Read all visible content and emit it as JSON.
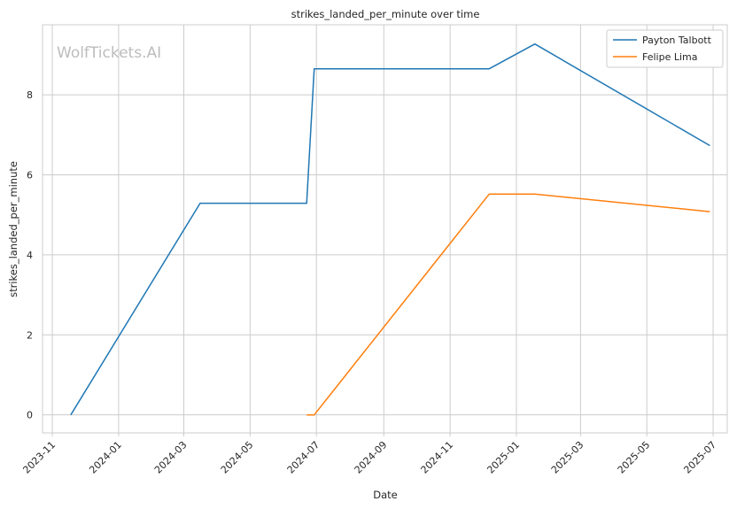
{
  "chart_data": {
    "type": "line",
    "title": "strikes_landed_per_minute over time",
    "xlabel": "Date",
    "ylabel": "strikes_landed_per_minute",
    "watermark": "WolfTickets.AI",
    "x_ticks": [
      "2023-11",
      "2024-01",
      "2024-03",
      "2024-05",
      "2024-07",
      "2024-09",
      "2024-11",
      "2025-01",
      "2025-03",
      "2025-05",
      "2025-07"
    ],
    "y_ticks": [
      0,
      2,
      4,
      6,
      8
    ],
    "xlim": [
      "2023-10-23",
      "2025-07-14"
    ],
    "ylim": [
      -0.45,
      9.75
    ],
    "grid": true,
    "legend_position": "top-right",
    "series": [
      {
        "name": "Payton Talbott",
        "color": "#1f77b4",
        "points": [
          {
            "x": "2023-11-18",
            "y": 0
          },
          {
            "x": "2024-03-16",
            "y": 5.29
          },
          {
            "x": "2024-06-22",
            "y": 5.29
          },
          {
            "x": "2024-06-29",
            "y": 8.65
          },
          {
            "x": "2024-12-07",
            "y": 8.65
          },
          {
            "x": "2025-01-18",
            "y": 9.27
          },
          {
            "x": "2025-06-28",
            "y": 6.73
          }
        ]
      },
      {
        "name": "Felipe Lima",
        "color": "#ff7f0e",
        "points": [
          {
            "x": "2024-06-22",
            "y": 0
          },
          {
            "x": "2024-06-29",
            "y": 0
          },
          {
            "x": "2024-12-07",
            "y": 5.52
          },
          {
            "x": "2025-01-18",
            "y": 5.52
          },
          {
            "x": "2025-06-28",
            "y": 5.08
          }
        ]
      }
    ]
  }
}
